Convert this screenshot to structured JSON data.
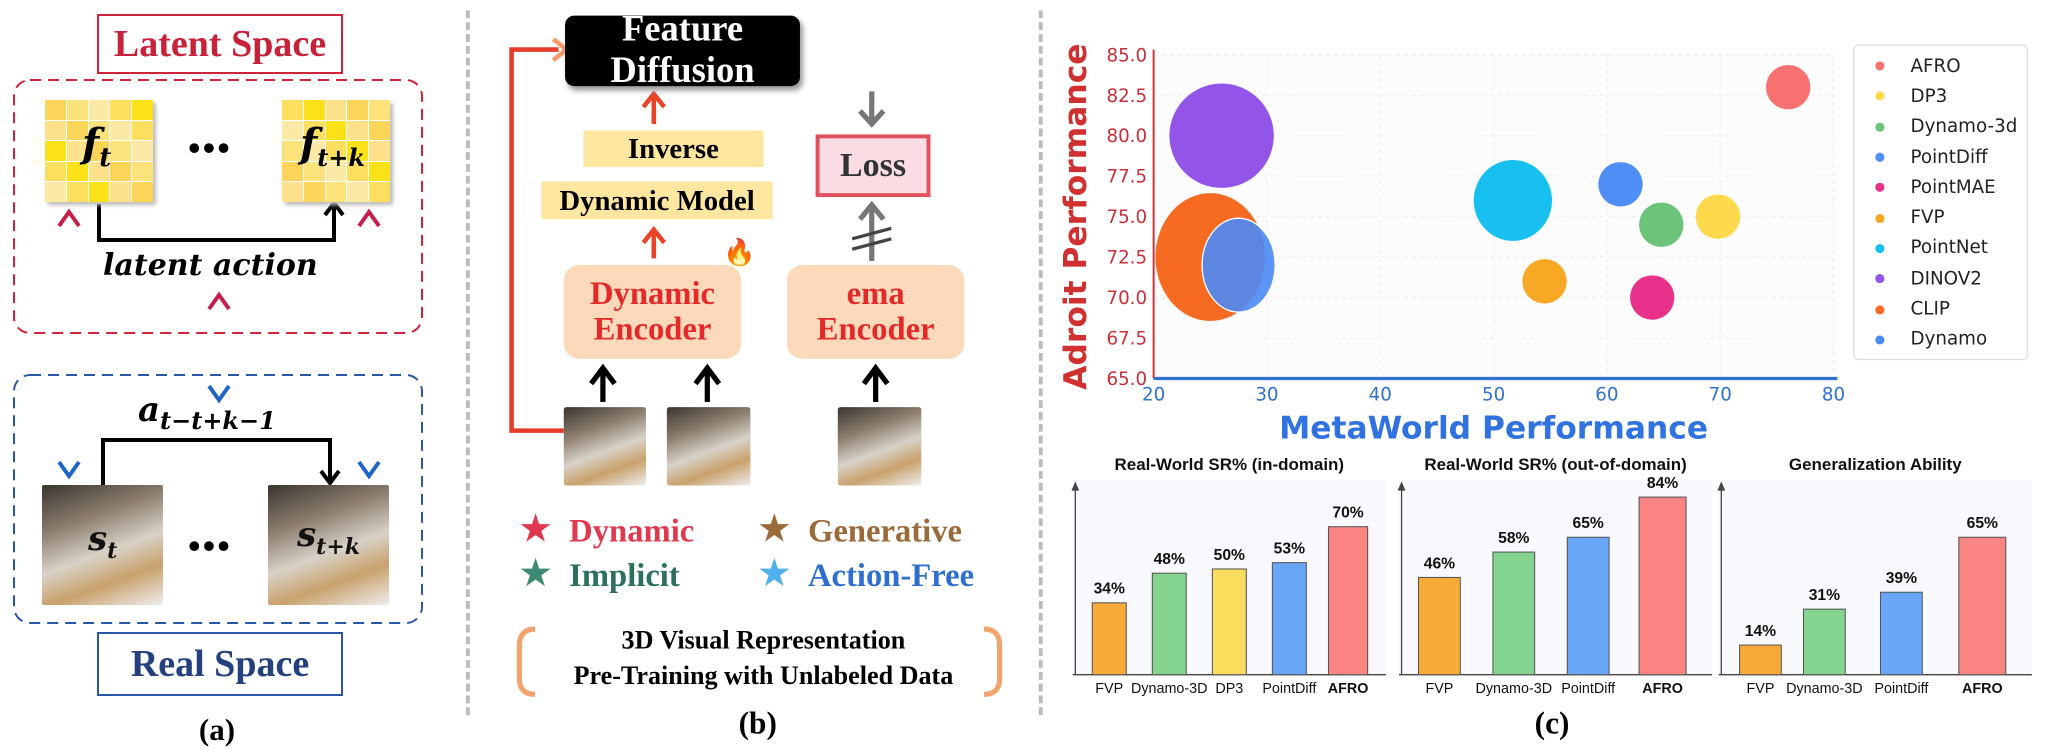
{
  "panel_a": {
    "caption": "(a)",
    "latent_space_label": "Latent Space",
    "real_space_label": "Real Space",
    "feature_start": "f",
    "feature_start_sub": "t",
    "feature_end": "f",
    "feature_end_sub": "t+k",
    "ellipsis": "•••",
    "latent_action_label": "latent action",
    "action_label": "a",
    "action_sub": "t−t+k−1",
    "state_start": "s",
    "state_start_sub": "t",
    "state_end": "s",
    "state_end_sub": "t+k",
    "colors": {
      "latent": "#d0233a",
      "real": "#2b57a8"
    }
  },
  "panel_b": {
    "caption": "(b)",
    "feature_diffusion": "Feature Diffusion",
    "inverse": "Inverse",
    "dynamic_model": "Dynamic Model",
    "loss": "Loss",
    "dynamic_encoder_line1": "Dynamic",
    "dynamic_encoder_line2": "Encoder",
    "ema_encoder_line1": "ema",
    "ema_encoder_line2": "Encoder",
    "fire_icon": "🔥",
    "legend": [
      {
        "label": "Dynamic",
        "color": "#e0394f"
      },
      {
        "label": "Generative",
        "color": "#9a6a3a"
      },
      {
        "label": "Implicit",
        "color": "#2e7060"
      },
      {
        "label": "Action-Free",
        "color": "#2f6fd0"
      }
    ],
    "summary_line1": "3D Visual Representation",
    "summary_line2": "Pre-Training with Unlabeled Data"
  },
  "panel_c": {
    "caption": "(c)"
  },
  "chart_data": [
    {
      "type": "scatter",
      "xlabel": "MetaWorld Performance",
      "ylabel": "Adroit Performance",
      "xlim": [
        20,
        80
      ],
      "ylim": [
        65,
        85
      ],
      "xticks": [
        "20",
        "30",
        "40",
        "50",
        "60",
        "70",
        "80"
      ],
      "yticks": [
        "65.0",
        "67.5",
        "70.0",
        "72.5",
        "75.0",
        "77.5",
        "80.0",
        "82.5",
        "85.0"
      ],
      "grid": true,
      "legend_position": "right",
      "series": [
        {
          "name": "AFRO",
          "x": 76,
          "y": 83,
          "color": "#f87171"
        },
        {
          "name": "DP3",
          "x": 69.8,
          "y": 75,
          "color": "#fdd94b"
        },
        {
          "name": "Dynamo-3d",
          "x": 64.8,
          "y": 74.5,
          "color": "#6cc47a"
        },
        {
          "name": "PointDiff",
          "x": 61.2,
          "y": 77,
          "color": "#4f8ef7"
        },
        {
          "name": "PointMAE",
          "x": 64,
          "y": 70,
          "color": "#e8318a"
        },
        {
          "name": "FVP",
          "x": 54.5,
          "y": 71,
          "color": "#f9a825"
        },
        {
          "name": "PointNet",
          "x": 51.7,
          "y": 76,
          "color": "#18c0f0"
        },
        {
          "name": "DINOV2",
          "x": 26,
          "y": 80,
          "color": "#9255e8"
        },
        {
          "name": "CLIP",
          "x": 25,
          "y": 72.5,
          "color": "#f76a22"
        },
        {
          "name": "Dynamo",
          "x": 27.5,
          "y": 72,
          "color": "#4a8af5"
        }
      ]
    },
    {
      "type": "bar",
      "title": "Real-World SR% (in-domain)",
      "categories": [
        "FVP",
        "Dynamo-3D",
        "DP3",
        "PointDiff",
        "AFRO"
      ],
      "values": [
        34,
        48,
        50,
        53,
        70
      ],
      "value_labels": [
        "34%",
        "48%",
        "50%",
        "53%",
        "70%"
      ],
      "colors": [
        "#f9ab3a",
        "#84d48f",
        "#fcdc5c",
        "#6aa6f8",
        "#fb8585"
      ]
    },
    {
      "type": "bar",
      "title": "Real-World SR% (out-of-domain)",
      "categories": [
        "FVP",
        "Dynamo-3D",
        "PointDiff",
        "AFRO"
      ],
      "values": [
        46,
        58,
        65,
        84
      ],
      "value_labels": [
        "46%",
        "58%",
        "65%",
        "84%"
      ],
      "colors": [
        "#f9ab3a",
        "#84d48f",
        "#6aa6f8",
        "#fb8585"
      ]
    },
    {
      "type": "bar",
      "title": "Generalization Ability",
      "categories": [
        "FVP",
        "Dynamo-3D",
        "PointDiff",
        "AFRO"
      ],
      "values": [
        14,
        31,
        39,
        65
      ],
      "value_labels": [
        "14%",
        "31%",
        "39%",
        "65%"
      ],
      "colors": [
        "#f9ab3a",
        "#84d48f",
        "#6aa6f8",
        "#fb8585"
      ]
    }
  ]
}
